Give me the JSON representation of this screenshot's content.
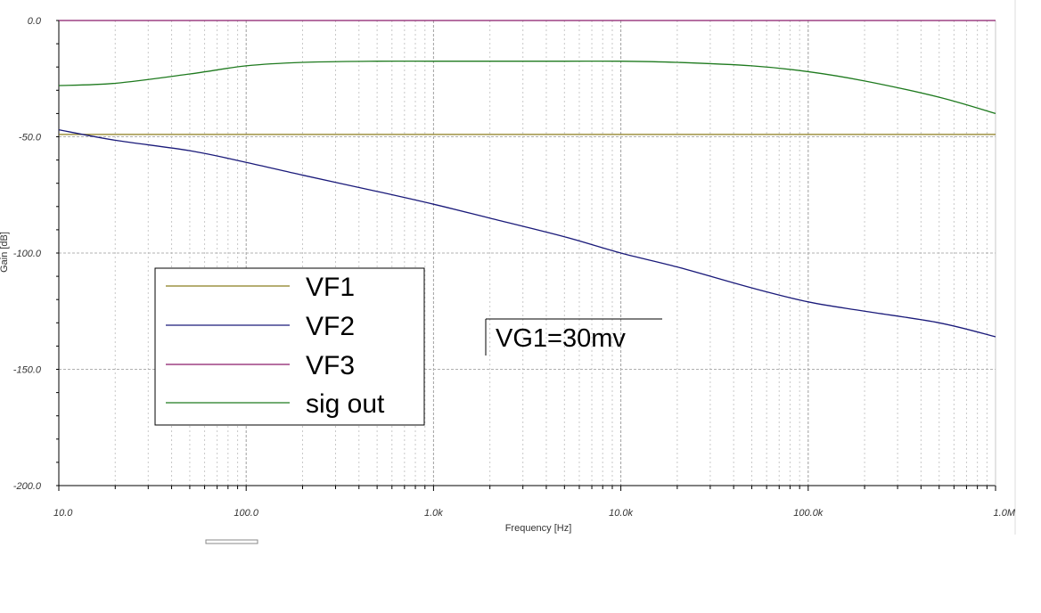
{
  "chart_data": {
    "type": "line",
    "title": "",
    "xlabel": "Frequency [Hz]",
    "ylabel": "Gain [dB]",
    "xscale": "log",
    "xlim": [
      10,
      1000000
    ],
    "ylim": [
      0,
      -200
    ],
    "grid": true,
    "x_ticks": [
      {
        "value": 10,
        "label": "10.0"
      },
      {
        "value": 100,
        "label": "100.0"
      },
      {
        "value": 1000,
        "label": "1.0k"
      },
      {
        "value": 10000,
        "label": "10.0k"
      },
      {
        "value": 100000,
        "label": "100.0k"
      },
      {
        "value": 1000000,
        "label": "1.0M"
      }
    ],
    "y_ticks": [
      {
        "value": 0,
        "label": "0.0"
      },
      {
        "value": -50,
        "label": "-50.0"
      },
      {
        "value": -100,
        "label": "-100.0"
      },
      {
        "value": -150,
        "label": "-150.0"
      },
      {
        "value": -200,
        "label": "-200.0"
      }
    ],
    "legend_position": "lower-left",
    "series": [
      {
        "name": "VF1",
        "color": "#8B7D1E",
        "x": [
          10,
          1000000
        ],
        "y": [
          -49,
          -49
        ]
      },
      {
        "name": "VF2",
        "color": "#1A1A7A",
        "x": [
          10,
          20,
          50,
          100,
          200,
          500,
          1000,
          2000,
          5000,
          10000,
          20000,
          50000,
          100000,
          200000,
          500000,
          1000000
        ],
        "y": [
          -47,
          -51.5,
          -56,
          -61,
          -66.5,
          -73.5,
          -79,
          -85,
          -93,
          -100,
          -106,
          -115,
          -121,
          -125,
          -130,
          -136
        ]
      },
      {
        "name": "VF3",
        "color": "#8B1A6B",
        "x": [
          10,
          1000000
        ],
        "y": [
          0,
          0
        ]
      },
      {
        "name": "sig out",
        "color": "#1E7A1E",
        "x": [
          10,
          20,
          50,
          100,
          200,
          500,
          1000,
          2000,
          5000,
          10000,
          20000,
          50000,
          100000,
          200000,
          500000,
          1000000
        ],
        "y": [
          -28,
          -27,
          -23,
          -19.5,
          -18,
          -17.5,
          -17.5,
          -17.5,
          -17.5,
          -17.5,
          -18,
          -19.5,
          -22,
          -26,
          -33,
          -40
        ]
      }
    ],
    "annotations": [
      "VG1=30mv"
    ]
  }
}
